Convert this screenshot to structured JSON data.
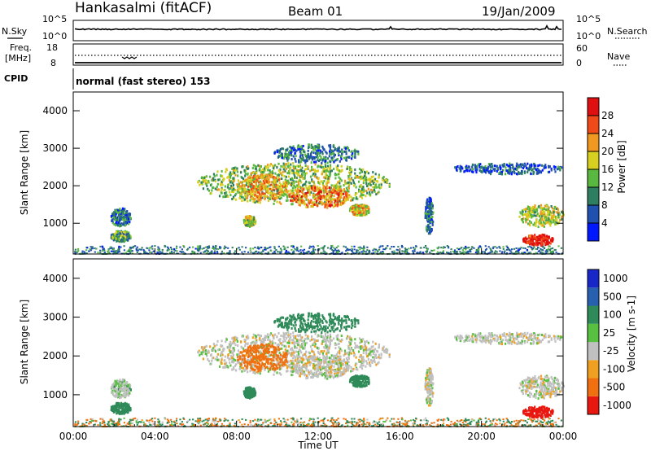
{
  "header": {
    "station": "Hankasalmi (fitACF)",
    "beam": "Beam 01",
    "date": "19/Jan/2009"
  },
  "noise_panel": {
    "left_label": "N.Sky",
    "right_label": "N.Search",
    "ticks_left": [
      "10^5",
      "10^0"
    ],
    "ticks_right": [
      "10^5",
      "10^0"
    ]
  },
  "freq_panel": {
    "left_label_1": "Freq.",
    "left_label_2": "[MHz]",
    "right_label": "Nave",
    "ticks_left": [
      "18",
      "8"
    ],
    "ticks_right": [
      "60",
      "0"
    ]
  },
  "cpid": {
    "label": "CPID",
    "text": "normal (fast stereo) 153"
  },
  "x_axis": {
    "label": "Time UT",
    "ticks": [
      "00:00",
      "04:00",
      "08:00",
      "12:00",
      "16:00",
      "20:00",
      "00:00"
    ]
  },
  "power_panel": {
    "ylabel": "Slant Range [km]",
    "yticks": [
      "1000",
      "2000",
      "3000",
      "4000"
    ],
    "colorbar_label": "Power [dB]",
    "colorbar_ticks": [
      "4",
      "8",
      "12",
      "16",
      "20",
      "24",
      "28"
    ],
    "colors": [
      "#0018ff",
      "#2050b0",
      "#2e7f62",
      "#58b840",
      "#d8d020",
      "#f09820",
      "#f04a18",
      "#e01010"
    ]
  },
  "velocity_panel": {
    "ylabel": "Slant Range [km]",
    "yticks": [
      "1000",
      "2000",
      "3000",
      "4000"
    ],
    "colorbar_label": "Velocity [m s-1]",
    "colorbar_ticks": [
      "1000",
      "500",
      "100",
      "25",
      "-25",
      "-100",
      "-500",
      "-1000"
    ],
    "colors": [
      "#1828c8",
      "#2860b0",
      "#2e8a58",
      "#58c040",
      "#c0c0c0",
      "#f0a020",
      "#f07010",
      "#e81810"
    ]
  },
  "chart_data": {
    "type": "heatmap",
    "title": "Hankasalmi (fitACF)",
    "xlabel": "Time UT",
    "ylabel": "Slant Range [km]",
    "x_range_hours": [
      0,
      24
    ],
    "y_range_km": [
      180,
      4500
    ],
    "power_scale_db": [
      0,
      30
    ],
    "velocity_scale_ms": [
      -1000,
      1000
    ],
    "echo_regions": [
      {
        "t": [
          0.0,
          24.0
        ],
        "range": [
          180,
          400
        ],
        "power": 8,
        "velocity": 0,
        "kind": "ground-scatter-strip"
      },
      {
        "t": [
          1.8,
          2.8
        ],
        "range": [
          900,
          1400
        ],
        "power": 8,
        "velocity": 25
      },
      {
        "t": [
          1.8,
          2.8
        ],
        "range": [
          500,
          800
        ],
        "power": 12,
        "velocity": 100
      },
      {
        "t": [
          6.0,
          15.5
        ],
        "range": [
          1500,
          2600
        ],
        "power": 14,
        "velocity": 0
      },
      {
        "t": [
          8.0,
          10.5
        ],
        "range": [
          1600,
          2300
        ],
        "power": 20,
        "velocity": -100
      },
      {
        "t": [
          10.5,
          13.5
        ],
        "range": [
          1400,
          2000
        ],
        "power": 22,
        "velocity": 0
      },
      {
        "t": [
          8.3,
          8.9
        ],
        "range": [
          900,
          1200
        ],
        "power": 16,
        "velocity": 100
      },
      {
        "t": [
          13.5,
          14.5
        ],
        "range": [
          1200,
          1500
        ],
        "power": 18,
        "velocity": 100
      },
      {
        "t": [
          9.8,
          14.0
        ],
        "range": [
          2600,
          3100
        ],
        "power": 8,
        "velocity": 100
      },
      {
        "t": [
          17.2,
          17.6
        ],
        "range": [
          700,
          1700
        ],
        "power": 8,
        "velocity": 0
      },
      {
        "t": [
          18.5,
          24.0
        ],
        "range": [
          2300,
          2600
        ],
        "power": 6,
        "velocity": 0
      },
      {
        "t": [
          21.8,
          24.0
        ],
        "range": [
          900,
          1500
        ],
        "power": 16,
        "velocity": 0
      },
      {
        "t": [
          22.0,
          23.5
        ],
        "range": [
          400,
          700
        ],
        "power": 28,
        "velocity": -500
      }
    ]
  }
}
